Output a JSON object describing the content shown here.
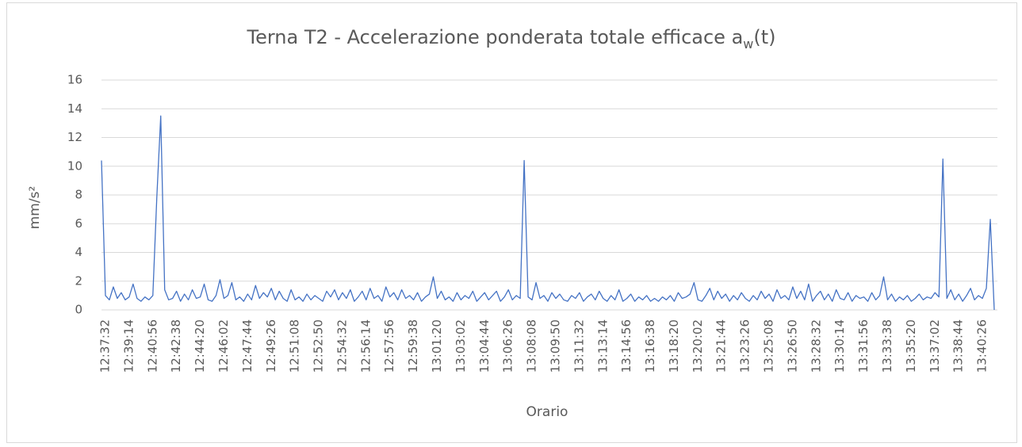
{
  "chart_data": {
    "type": "line",
    "title": [
      "Terna T2 - Accelerazione ponderata totale efficace a",
      "w",
      "(t)"
    ],
    "y_label": "mm/s²",
    "x_label": "Orario",
    "ylim": [
      0,
      16
    ],
    "yticks": [
      0,
      2,
      4,
      6,
      8,
      10,
      12,
      14,
      16
    ],
    "grid": true,
    "categories": [
      "12:37:32",
      null,
      null,
      null,
      null,
      null,
      "12:39:14",
      null,
      null,
      null,
      null,
      null,
      "12:40:56",
      null,
      null,
      null,
      null,
      null,
      "12:42:38",
      null,
      null,
      null,
      null,
      null,
      "12:44:20",
      null,
      null,
      null,
      null,
      null,
      "12:46:02",
      null,
      null,
      null,
      null,
      null,
      "12:47:44",
      null,
      null,
      null,
      null,
      null,
      "12:49:26",
      null,
      null,
      null,
      null,
      null,
      "12:51:08",
      null,
      null,
      null,
      null,
      null,
      "12:52:50",
      null,
      null,
      null,
      null,
      null,
      "12:54:32",
      null,
      null,
      null,
      null,
      null,
      "12:56:14",
      null,
      null,
      null,
      null,
      null,
      "12:57:56",
      null,
      null,
      null,
      null,
      null,
      "12:59:38",
      null,
      null,
      null,
      null,
      null,
      "13:01:20",
      null,
      null,
      null,
      null,
      null,
      "13:03:02",
      null,
      null,
      null,
      null,
      null,
      "13:04:44",
      null,
      null,
      null,
      null,
      null,
      "13:06:26",
      null,
      null,
      null,
      null,
      null,
      "13:08:08",
      null,
      null,
      null,
      null,
      null,
      "13:09:50",
      null,
      null,
      null,
      null,
      null,
      "13:11:32",
      null,
      null,
      null,
      null,
      null,
      "13:13:14",
      null,
      null,
      null,
      null,
      null,
      "13:14:56",
      null,
      null,
      null,
      null,
      null,
      "13:16:38",
      null,
      null,
      null,
      null,
      null,
      "13:18:20",
      null,
      null,
      null,
      null,
      null,
      "13:20:02",
      null,
      null,
      null,
      null,
      null,
      "13:21:44",
      null,
      null,
      null,
      null,
      null,
      "13:23:26",
      null,
      null,
      null,
      null,
      null,
      "13:25:08",
      null,
      null,
      null,
      null,
      null,
      "13:26:50",
      null,
      null,
      null,
      null,
      null,
      "13:28:32",
      null,
      null,
      null,
      null,
      null,
      "13:30:14",
      null,
      null,
      null,
      null,
      null,
      "13:31:56",
      null,
      null,
      null,
      null,
      null,
      "13:33:38",
      null,
      null,
      null,
      null,
      null,
      "13:35:20",
      null,
      null,
      null,
      null,
      null,
      "13:37:02",
      null,
      null,
      null,
      null,
      null,
      "13:38:44",
      null,
      null,
      null,
      null,
      null,
      "13:40:26",
      null,
      null,
      null,
      null
    ],
    "series": [
      {
        "color": "#4472c4",
        "values": [
          10.4,
          1.0,
          0.7,
          1.6,
          0.8,
          1.2,
          0.7,
          0.9,
          1.8,
          0.8,
          0.6,
          0.9,
          0.7,
          1.0,
          7.8,
          13.5,
          1.4,
          0.7,
          0.8,
          1.3,
          0.6,
          1.1,
          0.7,
          1.4,
          0.8,
          0.9,
          1.8,
          0.7,
          0.6,
          1.0,
          2.1,
          0.8,
          1.0,
          1.9,
          0.7,
          0.9,
          0.6,
          1.1,
          0.7,
          1.7,
          0.8,
          1.2,
          0.9,
          1.5,
          0.7,
          1.3,
          0.8,
          0.6,
          1.4,
          0.7,
          0.9,
          0.6,
          1.1,
          0.7,
          1.0,
          0.8,
          0.6,
          1.3,
          0.9,
          1.4,
          0.7,
          1.2,
          0.8,
          1.4,
          0.6,
          0.9,
          1.3,
          0.7,
          1.5,
          0.8,
          1.0,
          0.6,
          1.6,
          0.9,
          1.2,
          0.7,
          1.4,
          0.8,
          1.0,
          0.7,
          1.2,
          0.6,
          0.9,
          1.1,
          2.3,
          0.8,
          1.3,
          0.7,
          0.9,
          0.6,
          1.2,
          0.7,
          1.0,
          0.8,
          1.3,
          0.6,
          0.9,
          1.2,
          0.7,
          1.0,
          1.3,
          0.6,
          0.9,
          1.4,
          0.7,
          1.0,
          0.8,
          10.4,
          0.9,
          0.7,
          1.9,
          0.8,
          1.0,
          0.6,
          1.2,
          0.8,
          1.1,
          0.7,
          0.6,
          1.0,
          0.8,
          1.2,
          0.6,
          0.9,
          1.1,
          0.7,
          1.3,
          0.8,
          0.6,
          1.0,
          0.7,
          1.4,
          0.6,
          0.8,
          1.1,
          0.6,
          0.9,
          0.7,
          1.0,
          0.6,
          0.8,
          0.6,
          0.9,
          0.7,
          1.0,
          0.6,
          1.2,
          0.8,
          0.9,
          1.1,
          1.9,
          0.7,
          0.6,
          1.0,
          1.5,
          0.7,
          1.3,
          0.8,
          1.1,
          0.6,
          1.0,
          0.7,
          1.2,
          0.8,
          0.6,
          1.0,
          0.7,
          1.3,
          0.8,
          1.1,
          0.6,
          1.4,
          0.8,
          1.0,
          0.7,
          1.6,
          0.8,
          1.3,
          0.7,
          1.8,
          0.6,
          1.0,
          1.3,
          0.7,
          1.1,
          0.6,
          1.4,
          0.8,
          0.7,
          1.2,
          0.6,
          1.0,
          0.8,
          0.9,
          0.6,
          1.2,
          0.7,
          1.0,
          2.3,
          0.7,
          1.1,
          0.6,
          0.9,
          0.7,
          1.0,
          0.6,
          0.8,
          1.1,
          0.7,
          0.9,
          0.8,
          1.2,
          0.9,
          10.5,
          0.8,
          1.4,
          0.7,
          1.1,
          0.6,
          1.0,
          1.5,
          0.7,
          1.0,
          0.8,
          1.5,
          6.3,
          0
        ]
      }
    ]
  }
}
